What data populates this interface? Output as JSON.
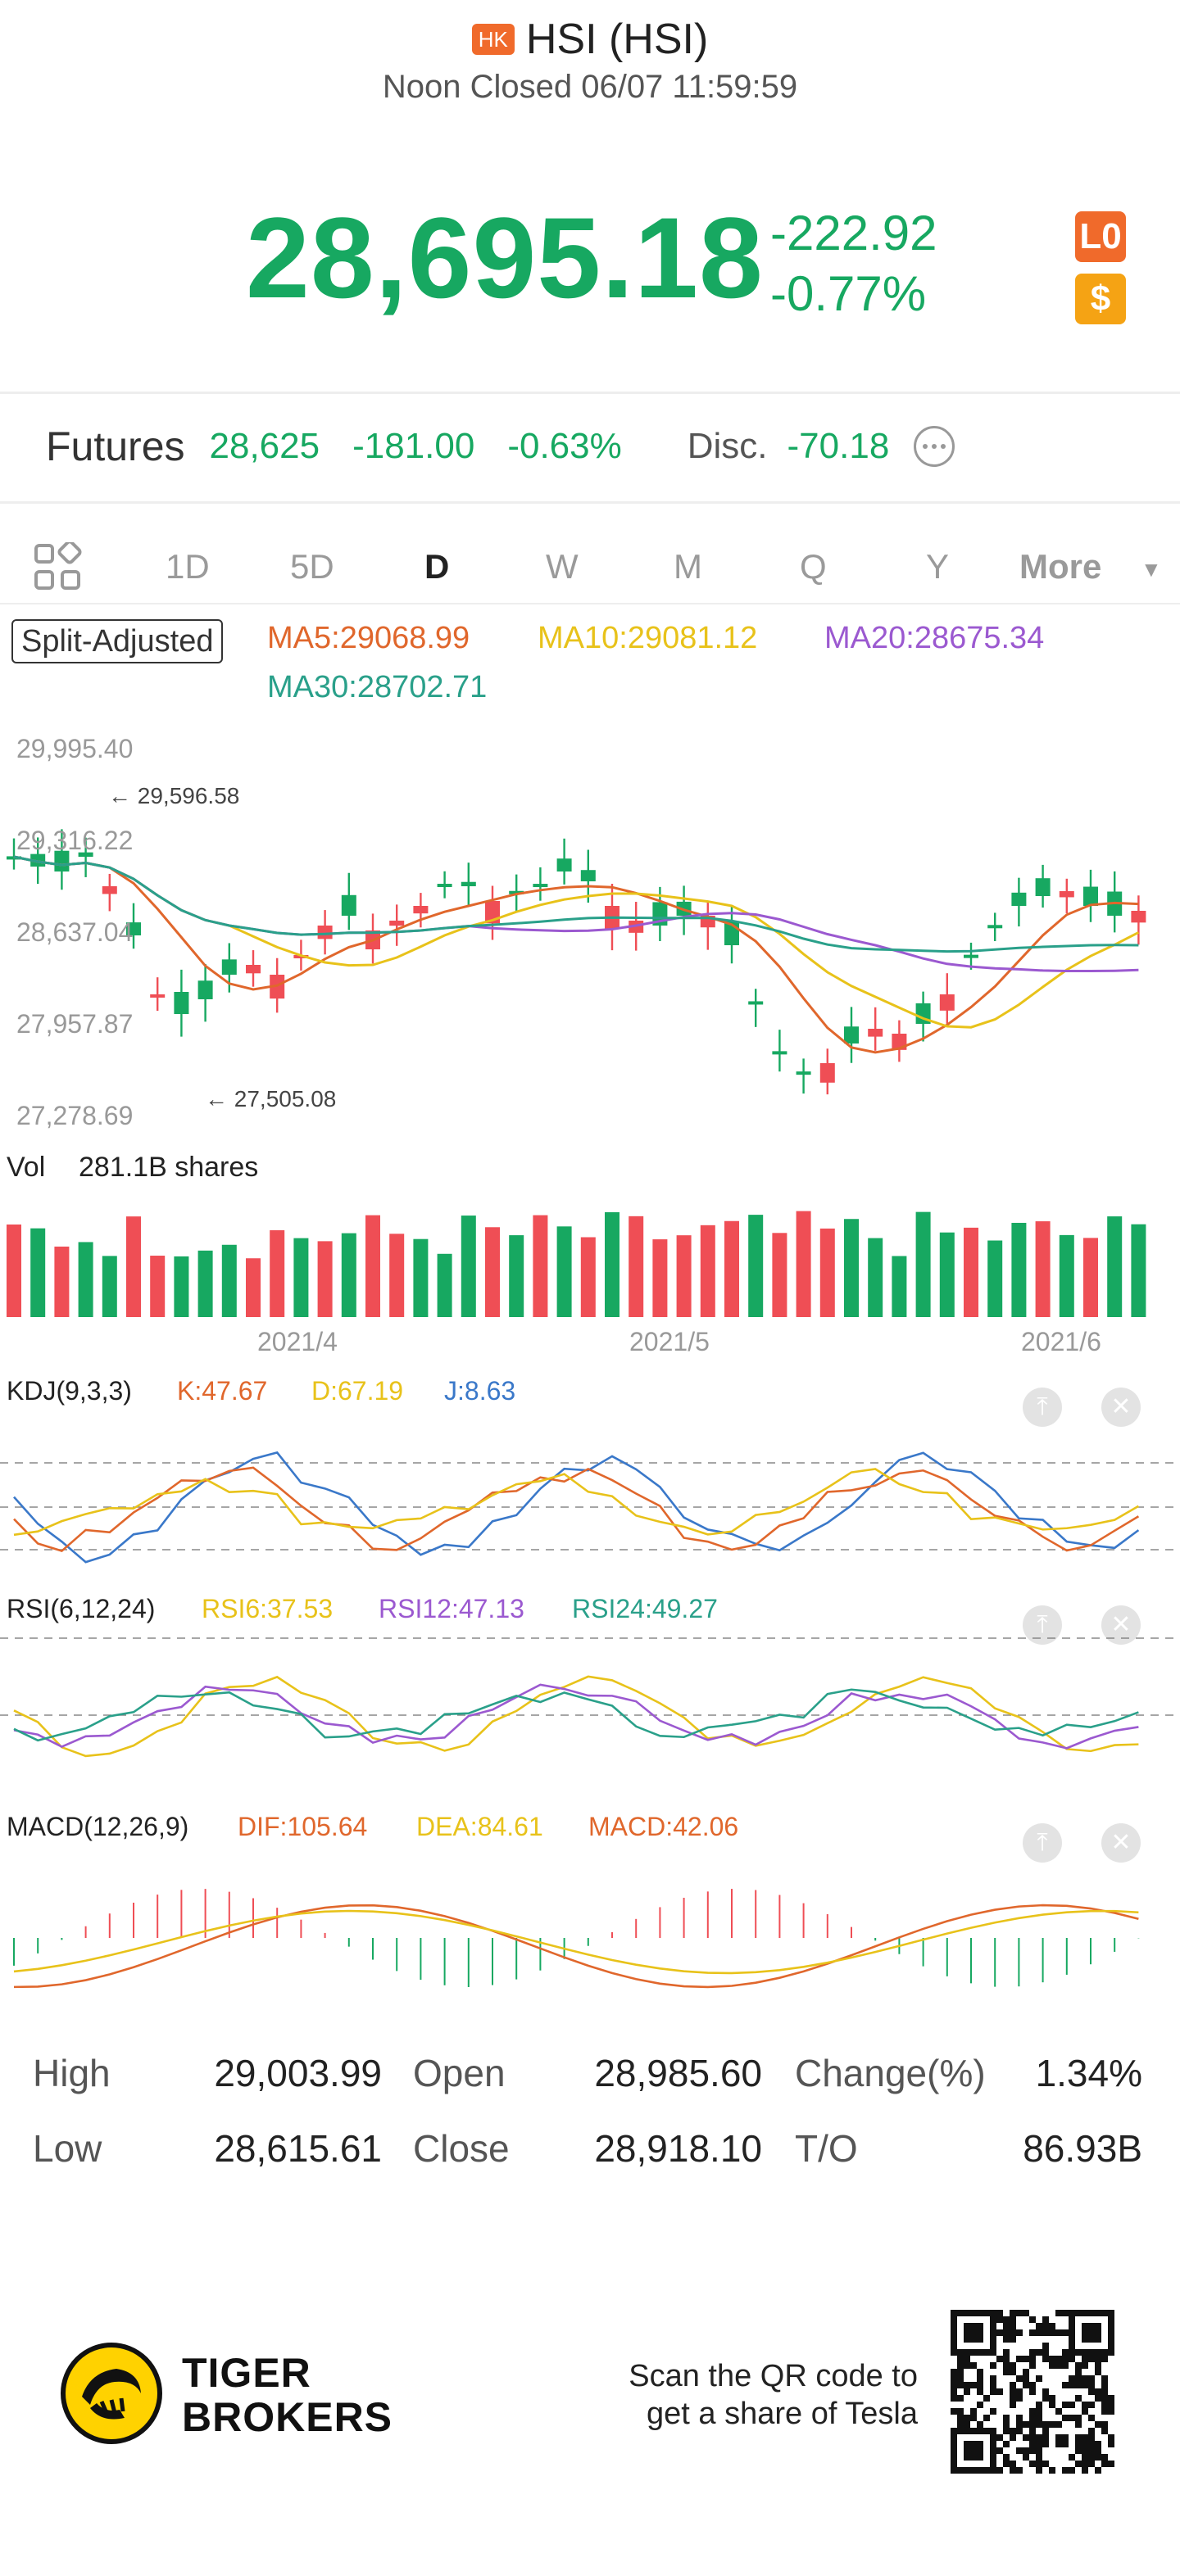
{
  "header": {
    "market_badge": "HK",
    "title": "HSI (HSI)",
    "status": "Noon Closed 06/07 11:59:59"
  },
  "quote": {
    "price": "28,695.18",
    "change": "-222.92",
    "change_pct": "-0.77%",
    "level_badge": "L0",
    "currency_badge": "$"
  },
  "futures": {
    "label": "Futures",
    "price": "28,625",
    "change": "-181.00",
    "change_pct": "-0.63%",
    "disc_label": "Disc.",
    "disc_value": "-70.18"
  },
  "tabs": [
    "1D",
    "5D",
    "D",
    "W",
    "M",
    "Q",
    "Y",
    "More"
  ],
  "active_tab": "D",
  "main_chart": {
    "adjust_label": "Split-Adjusted",
    "ma5": "MA5:29068.99",
    "ma10": "MA10:29081.12",
    "ma20": "MA20:28675.34",
    "ma30": "MA30:28702.71",
    "y_ticks": [
      "29,995.40",
      "29,316.22",
      "28,637.04",
      "27,957.87",
      "27,278.69"
    ],
    "high_marker": "29,596.58",
    "low_marker": "27,505.08",
    "colors": {
      "up": "#ef4e55",
      "down": "#17a861",
      "ma5": "#e0672c",
      "ma10": "#e8c21a",
      "ma20": "#9b59d0",
      "ma30": "#2aa08a"
    }
  },
  "volume": {
    "label": "Vol",
    "value": "281.1B shares",
    "x_labels": [
      "2021/4",
      "2021/5",
      "2021/6"
    ]
  },
  "kdj": {
    "title": "KDJ(9,3,3)",
    "k": "K:47.67",
    "d": "D:67.19",
    "j": "J:8.63"
  },
  "rsi": {
    "title": "RSI(6,12,24)",
    "rsi6": "RSI6:37.53",
    "rsi12": "RSI12:47.13",
    "rsi24": "RSI24:49.27"
  },
  "macd": {
    "title": "MACD(12,26,9)",
    "dif": "DIF:105.64",
    "dea": "DEA:84.61",
    "macd": "MACD:42.06"
  },
  "stats": {
    "high_label": "High",
    "high": "29,003.99",
    "open_label": "Open",
    "open": "28,985.60",
    "changepct_label": "Change(%)",
    "changepct": "1.34%",
    "low_label": "Low",
    "low": "28,615.61",
    "close_label": "Close",
    "close": "28,918.10",
    "to_label": "T/O",
    "to": "86.93B"
  },
  "footer": {
    "brand_line1": "TIGER",
    "brand_line2": "BROKERS",
    "qr_line1": "Scan the QR code to",
    "qr_line2": "get a share of Tesla"
  }
}
